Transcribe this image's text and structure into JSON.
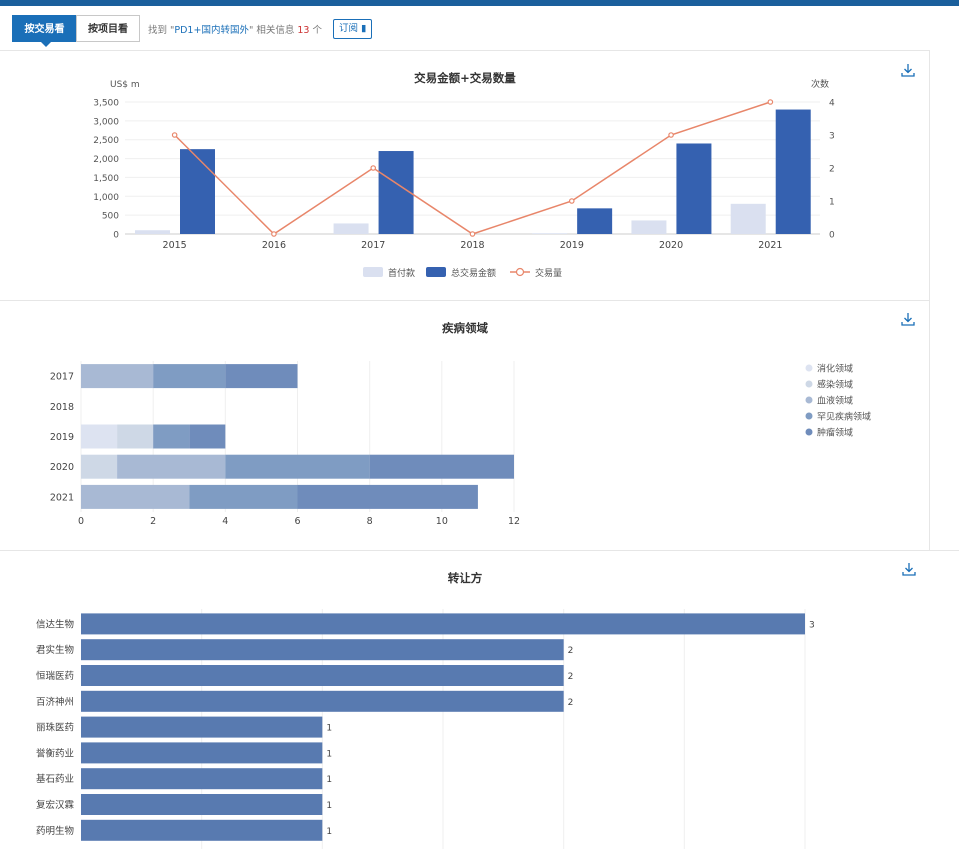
{
  "toolbar": {
    "tab_deal": "按交易看",
    "tab_project": "按项目看",
    "info_prefix": "找到 \"",
    "keyword": "PD1+国内转国外",
    "info_mid": "\" 相关信息 ",
    "count": "13",
    "info_suffix": " 个",
    "subscribe_label": "订阅 ▮"
  },
  "colors": {
    "header": "#1a5f9c",
    "accent": "#1a6fb8",
    "bar_total": "#3561b0",
    "bar_upfront": "#dae0f0",
    "line": "#e8866a",
    "bar_transfer": "#587ab0"
  },
  "chart_data": [
    {
      "type": "bar+line",
      "title": "交易金额+交易数量",
      "ylabel_left": "US$ m",
      "ylabel_right": "次数",
      "categories": [
        "2015",
        "2016",
        "2017",
        "2018",
        "2019",
        "2020",
        "2021"
      ],
      "ylim_left": [
        0,
        3500
      ],
      "yticks_left": [
        "0",
        "500",
        "1,000",
        "1,500",
        "2,000",
        "2,500",
        "3,000",
        "3,500"
      ],
      "ylim_right": [
        0,
        4
      ],
      "yticks_right": [
        "0",
        "1",
        "2",
        "3",
        "4"
      ],
      "series": [
        {
          "name": "首付款",
          "type": "bar",
          "values": [
            100,
            0,
            280,
            0,
            20,
            360,
            800
          ]
        },
        {
          "name": "总交易金额",
          "type": "bar",
          "values": [
            2250,
            0,
            2200,
            0,
            680,
            2400,
            3300
          ]
        },
        {
          "name": "交易量",
          "type": "line",
          "values": [
            3,
            0,
            2,
            0,
            1,
            3,
            4
          ]
        }
      ]
    },
    {
      "type": "stacked-bar-horizontal",
      "title": "疾病领域",
      "categories": [
        "2017",
        "2018",
        "2019",
        "2020",
        "2021"
      ],
      "xlim": [
        0,
        12
      ],
      "xticks": [
        "0",
        "2",
        "4",
        "6",
        "8",
        "10",
        "12"
      ],
      "series": [
        {
          "name": "消化领域",
          "values": [
            0,
            0,
            1,
            0,
            0
          ]
        },
        {
          "name": "感染领域",
          "values": [
            0,
            0,
            1,
            1,
            0
          ]
        },
        {
          "name": "血液领域",
          "values": [
            2,
            0,
            0,
            3,
            3
          ]
        },
        {
          "name": "罕见疾病领域",
          "values": [
            2,
            0,
            1,
            4,
            3
          ]
        },
        {
          "name": "肿瘤领域",
          "values": [
            2,
            0,
            1,
            4,
            5
          ]
        }
      ]
    },
    {
      "type": "bar-horizontal",
      "title": "转让方",
      "categories": [
        "信达生物",
        "君实生物",
        "恒瑞医药",
        "百济神州",
        "丽珠医药",
        "誉衡药业",
        "基石药业",
        "复宏汉霖",
        "药明生物"
      ],
      "values": [
        3,
        2,
        2,
        2,
        1,
        1,
        1,
        1,
        1
      ],
      "xlim": [
        0,
        3
      ]
    }
  ]
}
